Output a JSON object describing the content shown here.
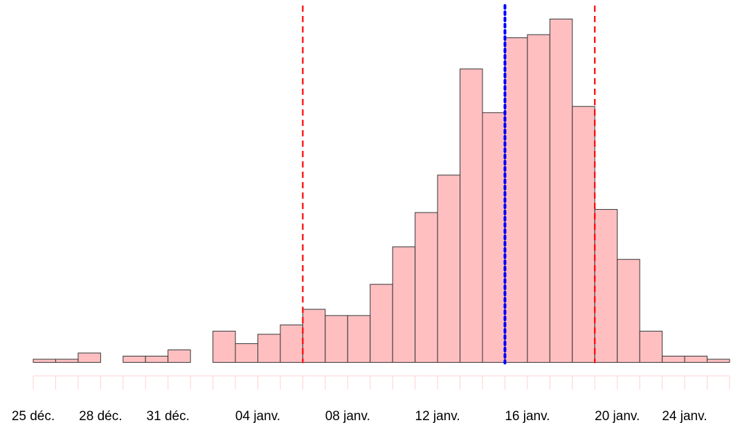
{
  "chart_data": {
    "type": "bar",
    "title": "",
    "xlabel": "",
    "ylabel": "",
    "grid": false,
    "legend": "none",
    "bin_width_days": 1,
    "x_range": [
      "2020-12-24",
      "2021-01-25"
    ],
    "y_range": [
      0,
      104
    ],
    "categories": [
      "2020-12-25",
      "2020-12-26",
      "2020-12-27",
      "2020-12-28",
      "2020-12-29",
      "2020-12-30",
      "2020-12-31",
      "2021-01-01",
      "2021-01-02",
      "2021-01-03",
      "2021-01-04",
      "2021-01-05",
      "2021-01-06",
      "2021-01-07",
      "2021-01-08",
      "2021-01-09",
      "2021-01-10",
      "2021-01-11",
      "2021-01-12",
      "2021-01-13",
      "2021-01-14",
      "2021-01-15",
      "2021-01-16",
      "2021-01-17",
      "2021-01-18",
      "2021-01-19",
      "2021-01-20",
      "2021-01-21",
      "2021-01-22",
      "2021-01-23",
      "2021-01-24"
    ],
    "values": [
      1,
      1,
      3,
      0,
      2,
      2,
      4,
      0,
      10,
      6,
      9,
      12,
      17,
      15,
      15,
      25,
      37,
      48,
      60,
      94,
      80,
      104,
      105,
      110,
      82,
      49,
      33,
      10,
      2,
      2,
      1
    ],
    "tick_labels": [
      {
        "date": "2020-12-25",
        "label": "25 déc."
      },
      {
        "date": "2020-12-28",
        "label": "28 déc."
      },
      {
        "date": "2020-12-31",
        "label": "31 déc."
      },
      {
        "date": "2021-01-04",
        "label": "04 janv."
      },
      {
        "date": "2021-01-08",
        "label": "08 janv."
      },
      {
        "date": "2021-01-12",
        "label": "12 janv."
      },
      {
        "date": "2021-01-16",
        "label": "16 janv."
      },
      {
        "date": "2021-01-20",
        "label": "20 janv."
      },
      {
        "date": "2021-01-24",
        "label": "24 janv."
      }
    ],
    "reference_lines": [
      {
        "date": "2021-01-06",
        "color": "#FF0000",
        "style": "dashed"
      },
      {
        "date": "2021-01-15",
        "color": "#0000FF",
        "style": "dotted"
      },
      {
        "date": "2021-01-19",
        "color": "#FF0000",
        "style": "dashed"
      }
    ],
    "bar_color": "#FFBFC1",
    "bar_border_color": "#333333",
    "rug_color": "#FFD0D0"
  }
}
